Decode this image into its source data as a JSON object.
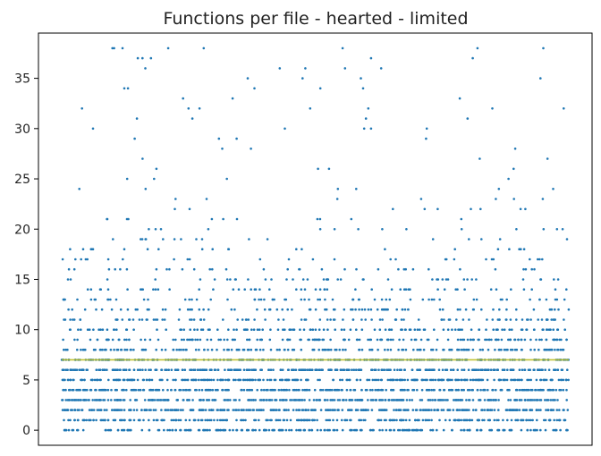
{
  "chart_data": {
    "type": "scatter",
    "title": "Functions per file - hearted - limited",
    "xlabel": "",
    "ylabel": "",
    "x_ticks_shown": false,
    "ylim": [
      -1.5,
      39.5
    ],
    "y_ticks": [
      0,
      5,
      10,
      15,
      20,
      25,
      30,
      35
    ],
    "grid": false,
    "legend": "none",
    "point_color": "#1f77b4",
    "mean_line": {
      "y": 7,
      "color": "#bcbd22"
    },
    "series": [
      {
        "values_dense_levels": [
          0,
          1,
          2,
          3,
          4,
          5,
          6,
          7,
          8,
          9,
          10,
          11
        ],
        "values_sparse_levels": [
          12,
          13,
          14,
          15,
          16,
          17,
          18,
          19,
          20,
          21,
          22,
          23,
          24,
          25,
          26,
          27,
          28,
          29,
          30,
          31,
          32,
          33,
          34,
          35,
          36,
          37,
          38
        ],
        "notable_points": [
          {
            "x": 0.04,
            "y": 32
          },
          {
            "x": 0.1,
            "y": 38
          },
          {
            "x": 0.12,
            "y": 38
          },
          {
            "x": 0.15,
            "y": 37
          },
          {
            "x": 0.21,
            "y": 38
          },
          {
            "x": 0.25,
            "y": 32
          },
          {
            "x": 0.28,
            "y": 38
          },
          {
            "x": 0.31,
            "y": 29
          },
          {
            "x": 0.38,
            "y": 34
          },
          {
            "x": 0.43,
            "y": 36
          },
          {
            "x": 0.44,
            "y": 30
          },
          {
            "x": 0.49,
            "y": 32
          },
          {
            "x": 0.51,
            "y": 34
          },
          {
            "x": 0.61,
            "y": 37
          },
          {
            "x": 0.63,
            "y": 36
          },
          {
            "x": 0.59,
            "y": 35
          },
          {
            "x": 0.6,
            "y": 31
          },
          {
            "x": 0.72,
            "y": 30
          },
          {
            "x": 0.82,
            "y": 38
          },
          {
            "x": 0.99,
            "y": 32
          }
        ]
      }
    ]
  }
}
